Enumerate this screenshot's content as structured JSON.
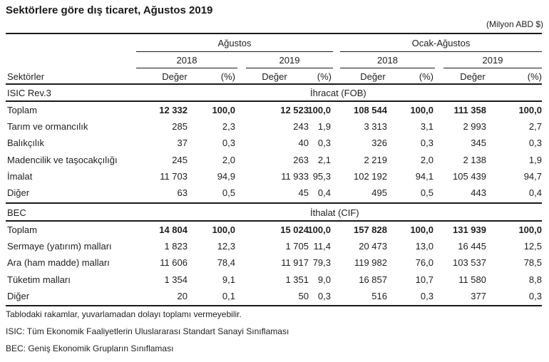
{
  "title": "Sektörlere göre dış ticaret, Ağustos 2019",
  "unit": "(Milyon ABD $)",
  "header": {
    "period_groups": [
      "Ağustos",
      "Ocak-Ağustos"
    ],
    "years": [
      "2018",
      "2019",
      "2018",
      "2019"
    ],
    "row_label": "Sektörler",
    "value_label": "Değer",
    "pct_label": "(%)"
  },
  "sections": [
    {
      "classification": "ISIC  Rev.3",
      "flow": "İhracat (FOB)",
      "rows": [
        {
          "label": "Toplam",
          "bold": true,
          "values": [
            "12 332",
            "100,0",
            "12 523",
            "100,0",
            "108 544",
            "100,0",
            "111 358",
            "100,0"
          ]
        },
        {
          "label": "Tarım ve ormancılık",
          "values": [
            "285",
            "2,3",
            "243",
            "1,9",
            "3 313",
            "3,1",
            "2 993",
            "2,7"
          ]
        },
        {
          "label": "Balıkçılık",
          "values": [
            "37",
            "0,3",
            "40",
            "0,3",
            "326",
            "0,3",
            "345",
            "0,3"
          ]
        },
        {
          "label": "Madencilik ve taşocakçılığı",
          "values": [
            "245",
            "2,0",
            "263",
            "2,1",
            "2 219",
            "2,0",
            "2 138",
            "1,9"
          ]
        },
        {
          "label": "İmalat",
          "values": [
            "11 703",
            "94,9",
            "11 933",
            "95,3",
            "102 192",
            "94,1",
            "105 439",
            "94,7"
          ]
        },
        {
          "label": "Diğer",
          "values": [
            "63",
            "0,5",
            "45",
            "0,4",
            "495",
            "0,5",
            "443",
            "0,4"
          ]
        }
      ]
    },
    {
      "classification": "BEC",
      "flow": "İthalat (CIF)",
      "rows": [
        {
          "label": "Toplam",
          "bold": true,
          "values": [
            "14 804",
            "100,0",
            "15 024",
            "100,0",
            "157 828",
            "100,0",
            "131 939",
            "100,0"
          ]
        },
        {
          "label": "Sermaye (yatırım) malları",
          "values": [
            "1 823",
            "12,3",
            "1 705",
            "11,4",
            "20 473",
            "13,0",
            "16 445",
            "12,5"
          ]
        },
        {
          "label": "Ara (ham madde) malları",
          "values": [
            "11 606",
            "78,4",
            "11 917",
            "79,3",
            "119 982",
            "76,0",
            "103 537",
            "78,5"
          ]
        },
        {
          "label": "Tüketim malları",
          "values": [
            "1 354",
            "9,1",
            "1 351",
            "9,0",
            "16 857",
            "10,7",
            "11 580",
            "8,8"
          ]
        },
        {
          "label": "Diğer",
          "values": [
            "20",
            "0,1",
            "50",
            "0,3",
            "516",
            "0,3",
            "377",
            "0,3"
          ]
        }
      ]
    }
  ],
  "footnotes": [
    "Tablodaki rakamlar, yuvarlamadan dolayı toplamı vermeyebilir.",
    "ISIC: Tüm Ekonomik Faaliyetlerin Uluslararası Standart Sanayi Sınıflaması",
    "BEC: Geniş Ekonomik Grupların Sınıflaması"
  ]
}
